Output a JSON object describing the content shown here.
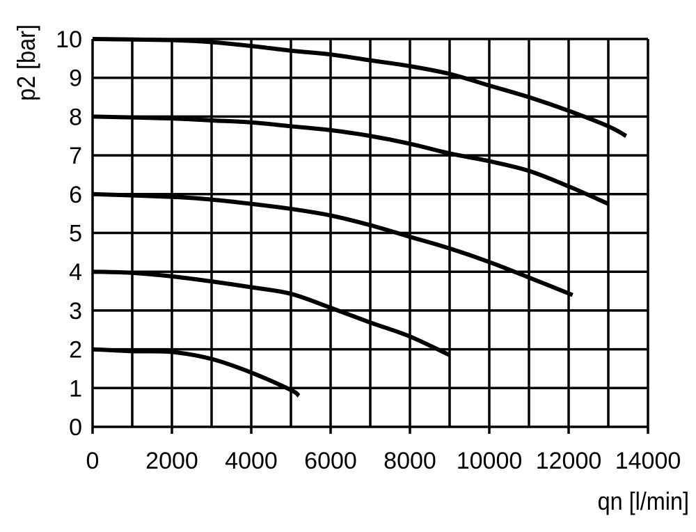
{
  "chart_data": {
    "type": "line",
    "title": "",
    "xlabel": "qn [l/min]",
    "ylabel": "p2 [bar]",
    "xlim": [
      0,
      14000
    ],
    "ylim": [
      0,
      10
    ],
    "xticks": [
      0,
      2000,
      4000,
      6000,
      8000,
      10000,
      12000,
      14000
    ],
    "yticks": [
      0,
      1,
      2,
      3,
      4,
      5,
      6,
      7,
      8,
      9,
      10
    ],
    "grid": true,
    "grid_x_step": 1000,
    "grid_y_step": 1,
    "line_color": "#000000",
    "series": [
      {
        "x": [
          0,
          2000,
          3000,
          4000,
          5000,
          6000,
          7000,
          8000,
          9000,
          10000,
          11000,
          12000,
          13000,
          13450
        ],
        "y": [
          10,
          9.97,
          9.92,
          9.82,
          9.7,
          9.6,
          9.45,
          9.3,
          9.1,
          8.8,
          8.5,
          8.15,
          7.75,
          7.5
        ]
      },
      {
        "x": [
          0,
          2000,
          3000,
          4000,
          5000,
          6000,
          7000,
          8000,
          9000,
          10000,
          11000,
          12000,
          13000
        ],
        "y": [
          8,
          7.95,
          7.9,
          7.85,
          7.75,
          7.65,
          7.5,
          7.3,
          7.05,
          6.85,
          6.6,
          6.2,
          5.75
        ]
      },
      {
        "x": [
          0,
          2000,
          3000,
          4000,
          5000,
          6000,
          7000,
          8000,
          9000,
          10000,
          11000,
          12100
        ],
        "y": [
          6,
          5.93,
          5.86,
          5.75,
          5.62,
          5.45,
          5.2,
          4.9,
          4.6,
          4.25,
          3.85,
          3.4
        ]
      },
      {
        "x": [
          0,
          1000,
          2000,
          3000,
          4000,
          5000,
          6000,
          7000,
          8000,
          9000
        ],
        "y": [
          4,
          3.97,
          3.88,
          3.75,
          3.6,
          3.43,
          3.07,
          2.69,
          2.33,
          1.85
        ]
      },
      {
        "x": [
          0,
          1000,
          2000,
          3000,
          4000,
          5000,
          5200
        ],
        "y": [
          2,
          1.95,
          1.93,
          1.75,
          1.4,
          0.95,
          0.8
        ]
      }
    ]
  }
}
